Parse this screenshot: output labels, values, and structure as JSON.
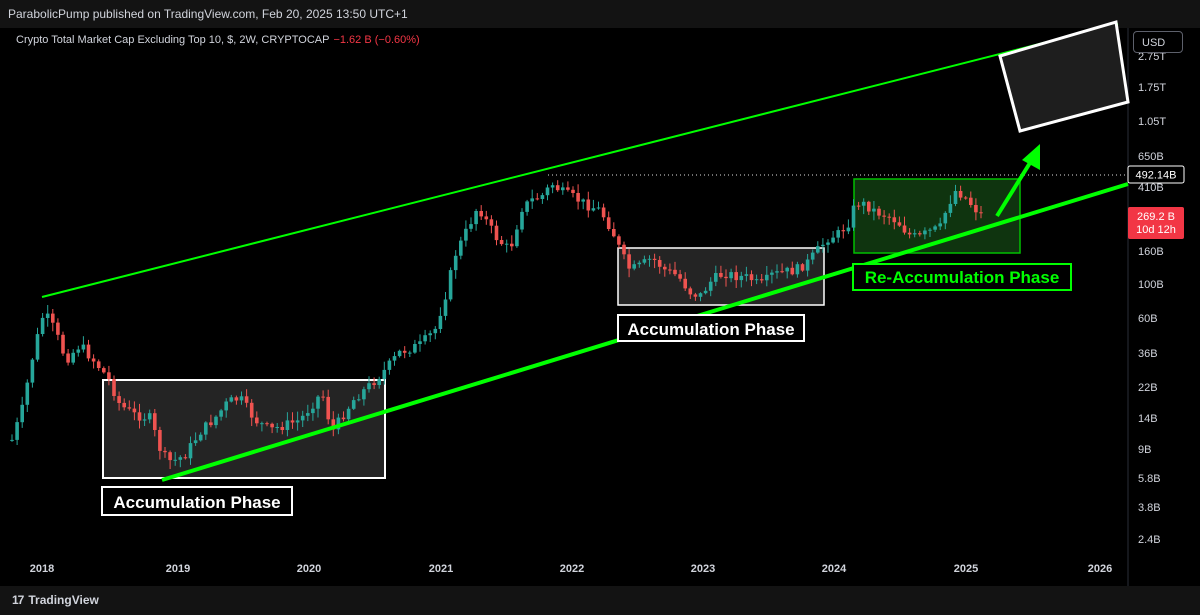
{
  "header": {
    "publisher_line": "ParabolicPump published on TradingView.com, Feb 20, 2025 13:50 UTC+1"
  },
  "legend": {
    "title": "Crypto Total Market Cap Excluding Top 10, $, 2W, CRYPTOCAP",
    "change": "−1.62 B (−0.60%)"
  },
  "toolbar": {
    "currency": "USD"
  },
  "footer": {
    "brand": "TradingView",
    "brand_mark": "17"
  },
  "colors": {
    "up": "#26a69a",
    "down": "#ef5350",
    "channel": "#00ff00",
    "box_border": "#ffffff",
    "box_fill_gray": "#2a2a2a",
    "box_fill_green": "#123d12",
    "price_tag": "#f23645",
    "label_green": "#00ff00"
  },
  "chart_data": {
    "type": "candlestick",
    "title": "Crypto Total Market Cap Excluding Top 10, $, 2W, CRYPTOCAP",
    "y_scale": "log",
    "y_ticks": [
      "2.75T",
      "1.75T",
      "1.05T",
      "650B",
      "410B",
      "160B",
      "100B",
      "60B",
      "36B",
      "22B",
      "14B",
      "9B",
      "5.8B",
      "3.8B",
      "2.4B"
    ],
    "x_ticks": [
      "2018",
      "2019",
      "2020",
      "2021",
      "2022",
      "2023",
      "2024",
      "2025",
      "2026"
    ],
    "last_price_label": "269.2 B",
    "countdown_label": "10d 12h",
    "high_marker_label": "492.14B",
    "annotations": [
      "Accumulation Phase",
      "Accumulation Phase",
      "Re-Accumulation Phase"
    ],
    "series": [
      {
        "x": "2018-01",
        "close_b": 90
      },
      {
        "x": "2018-06",
        "close_b": 30
      },
      {
        "x": "2018-12",
        "close_b": 9
      },
      {
        "x": "2019-06",
        "close_b": 20
      },
      {
        "x": "2019-12",
        "close_b": 15
      },
      {
        "x": "2020-03",
        "close_b": 11
      },
      {
        "x": "2020-08",
        "close_b": 24
      },
      {
        "x": "2021-01",
        "close_b": 50
      },
      {
        "x": "2021-05",
        "close_b": 350
      },
      {
        "x": "2021-11",
        "close_b": 480
      },
      {
        "x": "2022-06",
        "close_b": 130
      },
      {
        "x": "2022-12",
        "close_b": 95
      },
      {
        "x": "2023-06",
        "close_b": 110
      },
      {
        "x": "2023-12",
        "close_b": 150
      },
      {
        "x": "2024-03",
        "close_b": 330
      },
      {
        "x": "2024-08",
        "close_b": 190
      },
      {
        "x": "2024-12",
        "close_b": 420
      },
      {
        "x": "2025-02",
        "close_b": 269.2
      }
    ]
  }
}
